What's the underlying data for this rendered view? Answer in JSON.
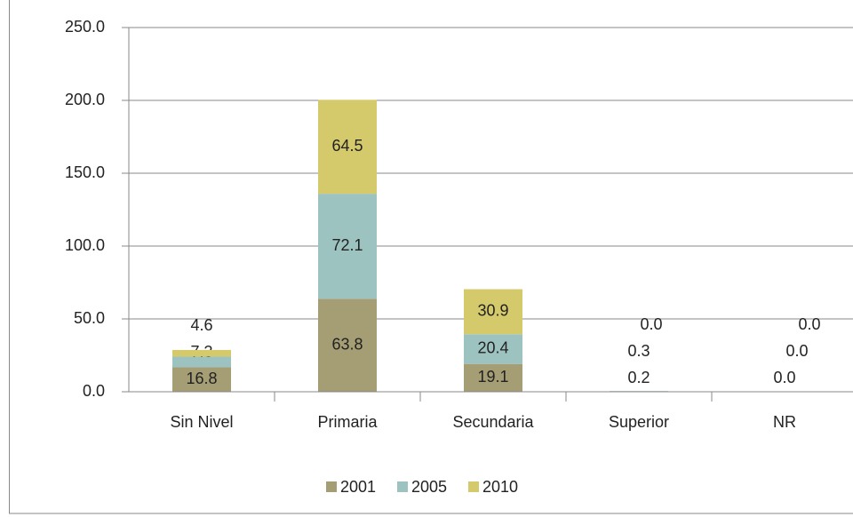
{
  "chart_data": {
    "type": "stacked_bar",
    "categories": [
      "Sin Nivel",
      "Primaria",
      "Secundaria",
      "Superior",
      "NR"
    ],
    "series": [
      {
        "name": "2001",
        "color": "#a59d74",
        "values": [
          16.8,
          63.8,
          19.1,
          0.2,
          0.0
        ],
        "value_labels": [
          "16.8",
          "63.8",
          "19.1",
          "0.2",
          "0.0"
        ]
      },
      {
        "name": "2005",
        "color": "#9dc3c1",
        "values": [
          7.3,
          72.1,
          20.4,
          0.3,
          0.0
        ],
        "value_labels": [
          "7.3",
          "72.1",
          "20.4",
          "0.3",
          "0.0"
        ]
      },
      {
        "name": "2010",
        "color": "#d4c96b",
        "values": [
          4.6,
          64.5,
          30.9,
          0.0,
          0.0
        ],
        "value_labels": [
          "4.6",
          "64.5",
          "30.9",
          "0.0",
          "0.0"
        ]
      }
    ],
    "ylim": [
      0,
      250
    ],
    "yticks": [
      {
        "value": 0,
        "label": "0.0"
      },
      {
        "value": 50,
        "label": "50.0"
      },
      {
        "value": 100,
        "label": "100.0"
      },
      {
        "value": 150,
        "label": "150.0"
      },
      {
        "value": 200,
        "label": "200.0"
      },
      {
        "value": 250,
        "label": "250.0"
      }
    ],
    "grid": true,
    "legend": "bottom"
  }
}
